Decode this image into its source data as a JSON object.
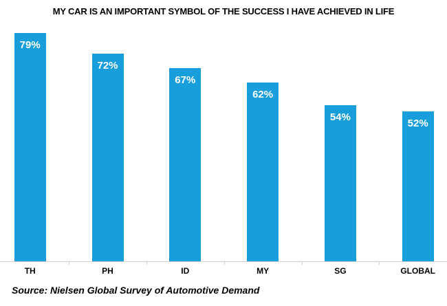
{
  "chart_data": {
    "type": "bar",
    "title": "MY CAR IS AN IMPORTANT SYMBOL OF THE SUCCESS I HAVE ACHIEVED IN LIFE",
    "categories": [
      "TH",
      "PH",
      "ID",
      "MY",
      "SG",
      "GLOBAL"
    ],
    "values": [
      79,
      72,
      67,
      62,
      54,
      52
    ],
    "value_labels": [
      "79%",
      "72%",
      "67%",
      "62%",
      "54%",
      "52%"
    ],
    "source": "Source: Nielsen Global Survey of Automotive Demand",
    "bar_color": "#189FDB",
    "value_label_color": "#FFFFFF",
    "axis_color": "#CFCFCF",
    "title_color": "#000000",
    "ylim": [
      0,
      100
    ],
    "grid": false,
    "legend": false
  }
}
